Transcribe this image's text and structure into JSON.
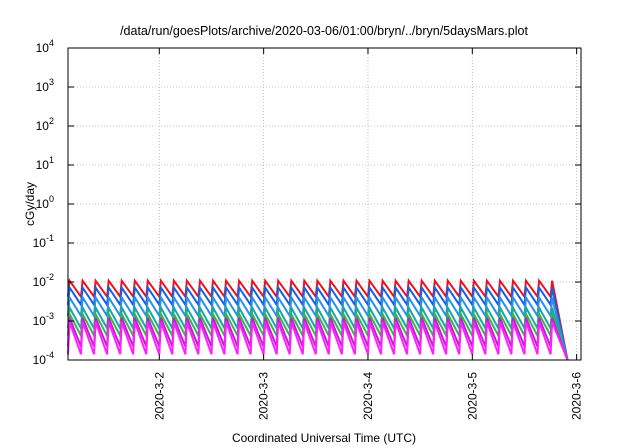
{
  "chart_data": {
    "type": "line",
    "title": "/data/run/goesPlots/archive/2020-03-06/01:00/bryn/../bryn/5daysMars.plot",
    "xlabel": "Coordinated Universal Time (UTC)",
    "ylabel": "cGy/day",
    "yscale": "log",
    "ylim": [
      0.0001,
      10000
    ],
    "xlim": [
      "2020-03-01 03:00",
      "2020-03-06 01:00"
    ],
    "grid": true,
    "x_ticks": [
      "2020-3-2",
      "2020-3-3",
      "2020-3-4",
      "2020-3-5",
      "2020-3-6"
    ],
    "y_ticks": [
      {
        "base": "10",
        "exp": "-4"
      },
      {
        "base": "10",
        "exp": "-3"
      },
      {
        "base": "10",
        "exp": "-2"
      },
      {
        "base": "10",
        "exp": "-1"
      },
      {
        "base": "10",
        "exp": "0"
      },
      {
        "base": "10",
        "exp": "1"
      },
      {
        "base": "10",
        "exp": "2"
      },
      {
        "base": "10",
        "exp": "3"
      },
      {
        "base": "10",
        "exp": "4"
      }
    ],
    "pattern": {
      "start": "2020-03-01 03:00",
      "end": "2020-03-05 18:00",
      "cycle_hours": 3
    },
    "series": [
      {
        "color": "#e8141e",
        "peak": 0.0108,
        "trough": 0.0042,
        "end_value": 0.0001
      },
      {
        "color": "#1a5fe0",
        "peak": 0.0072,
        "trough": 0.0026,
        "end_value": 0.0001
      },
      {
        "color": "#2a90e8",
        "peak": 0.004,
        "trough": 0.00135,
        "end_value": 0.0001
      },
      {
        "color": "#1aa8a0",
        "peak": 0.0022,
        "trough": 0.00065,
        "end_value": 0.0001
      },
      {
        "color": "#3cb44b",
        "peak": 0.0015,
        "trough": 0.00042,
        "end_value": 0.0001
      },
      {
        "color": "#c020d0",
        "peak": 0.0012,
        "trough": 0.00022,
        "end_value": 0.0001
      },
      {
        "color": "#ff20ff",
        "peak": 0.00095,
        "trough": 0.00014,
        "end_value": 0.0001
      }
    ]
  }
}
